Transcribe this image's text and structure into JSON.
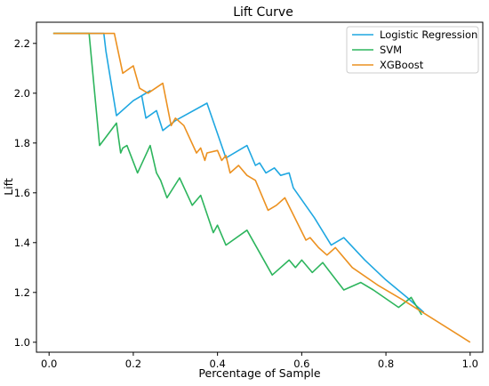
{
  "chart_data": {
    "type": "line",
    "title": "Lift Curve",
    "xlabel": "Percentage of Sample",
    "ylabel": "Lift",
    "xlim": [
      -0.03,
      1.03
    ],
    "ylim": [
      0.96,
      2.285
    ],
    "xticks": [
      0.0,
      0.2,
      0.4,
      0.6,
      0.8,
      1.0
    ],
    "xtick_labels": [
      "0.0",
      "0.2",
      "0.4",
      "0.6",
      "0.8",
      "1.0"
    ],
    "yticks": [
      1.0,
      1.2,
      1.4,
      1.6,
      1.8,
      2.0,
      2.2
    ],
    "ytick_labels": [
      "1.0",
      "1.2",
      "1.4",
      "1.6",
      "1.8",
      "2.0",
      "2.2"
    ],
    "grid": false,
    "legend_position": "top-right",
    "series": [
      {
        "name": "Logistic Regression",
        "color": "#1fa7e1",
        "x": [
          0.01,
          0.13,
          0.135,
          0.16,
          0.2,
          0.24,
          0.22,
          0.23,
          0.255,
          0.27,
          0.3,
          0.375,
          0.42,
          0.47,
          0.49,
          0.5,
          0.515,
          0.535,
          0.55,
          0.57,
          0.58,
          0.63,
          0.67,
          0.7,
          0.75,
          0.8,
          0.85,
          0.89
        ],
        "y": [
          2.24,
          2.24,
          2.17,
          1.91,
          1.97,
          2.01,
          1.99,
          1.9,
          1.93,
          1.85,
          1.89,
          1.96,
          1.74,
          1.79,
          1.71,
          1.72,
          1.68,
          1.7,
          1.67,
          1.68,
          1.62,
          1.5,
          1.39,
          1.42,
          1.33,
          1.25,
          1.18,
          1.12
        ]
      },
      {
        "name": "SVM",
        "color": "#2db55d",
        "x": [
          0.01,
          0.095,
          0.12,
          0.16,
          0.17,
          0.175,
          0.185,
          0.21,
          0.24,
          0.255,
          0.265,
          0.28,
          0.31,
          0.34,
          0.36,
          0.39,
          0.4,
          0.42,
          0.47,
          0.53,
          0.57,
          0.585,
          0.6,
          0.625,
          0.65,
          0.7,
          0.74,
          0.77,
          0.83,
          0.86,
          0.885
        ],
        "y": [
          2.24,
          2.24,
          1.79,
          1.88,
          1.76,
          1.78,
          1.79,
          1.68,
          1.79,
          1.68,
          1.65,
          1.58,
          1.66,
          1.55,
          1.59,
          1.44,
          1.47,
          1.39,
          1.45,
          1.27,
          1.33,
          1.3,
          1.33,
          1.28,
          1.32,
          1.21,
          1.24,
          1.21,
          1.14,
          1.18,
          1.11
        ]
      },
      {
        "name": "XGBoost",
        "color": "#ec9120",
        "x": [
          0.01,
          0.155,
          0.175,
          0.2,
          0.215,
          0.235,
          0.27,
          0.29,
          0.3,
          0.32,
          0.35,
          0.36,
          0.37,
          0.375,
          0.4,
          0.41,
          0.42,
          0.43,
          0.45,
          0.47,
          0.49,
          0.52,
          0.54,
          0.56,
          0.61,
          0.62,
          0.64,
          0.66,
          0.68,
          0.72,
          0.78,
          0.84,
          1.0
        ],
        "y": [
          2.24,
          2.24,
          2.08,
          2.11,
          2.02,
          2.0,
          2.04,
          1.87,
          1.9,
          1.87,
          1.76,
          1.78,
          1.73,
          1.76,
          1.77,
          1.73,
          1.75,
          1.68,
          1.71,
          1.67,
          1.65,
          1.53,
          1.55,
          1.58,
          1.41,
          1.42,
          1.38,
          1.35,
          1.38,
          1.3,
          1.23,
          1.17,
          1.0
        ]
      }
    ]
  }
}
